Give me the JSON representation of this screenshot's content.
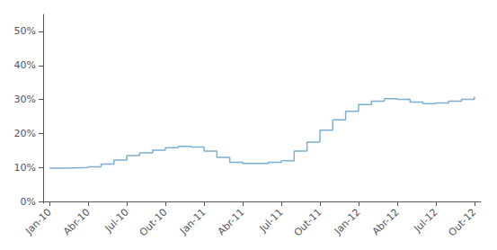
{
  "chart_data": {
    "type": "step",
    "color": "#7BAFD4",
    "grid": false,
    "categories": [
      "Jan-10",
      null,
      null,
      "Abr-10",
      null,
      null,
      "Jul-10",
      null,
      null,
      "Out-10",
      null,
      null,
      "Jan-11",
      null,
      null,
      "Abr-11",
      null,
      null,
      "Jul-11",
      null,
      null,
      "Out-11",
      null,
      null,
      "Jan-12",
      null,
      null,
      "Abr-12",
      null,
      null,
      "Jul-12",
      null,
      null,
      "Out-12"
    ],
    "values": [
      0.098,
      0.099,
      0.1,
      0.102,
      0.11,
      0.122,
      0.135,
      0.143,
      0.151,
      0.158,
      0.162,
      0.16,
      0.148,
      0.13,
      0.115,
      0.112,
      0.112,
      0.115,
      0.12,
      0.148,
      0.175,
      0.21,
      0.24,
      0.265,
      0.285,
      0.295,
      0.302,
      0.3,
      0.292,
      0.288,
      0.29,
      0.295,
      0.3,
      0.308
    ],
    "ylim": [
      -0.005,
      0.55
    ],
    "yticks": [
      {
        "value": 0.0,
        "label": "0%"
      },
      {
        "value": 0.1,
        "label": "10%"
      },
      {
        "value": 0.2,
        "label": "20%"
      },
      {
        "value": 0.3,
        "label": "30%"
      },
      {
        "value": 0.4,
        "label": "40%"
      },
      {
        "value": 0.5,
        "label": "50%"
      }
    ]
  }
}
